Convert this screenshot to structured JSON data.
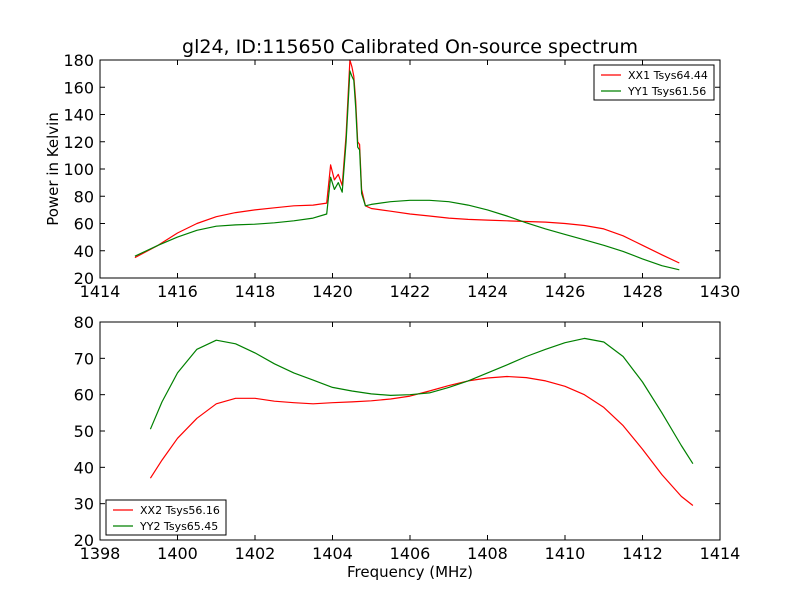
{
  "chart_data": [
    {
      "type": "line",
      "title": "gl24, ID:115650 Calibrated On-source spectrum",
      "xlabel": "",
      "ylabel": "Power in Kelvin",
      "xlim": [
        1414,
        1430
      ],
      "ylim": [
        20,
        180
      ],
      "xticks": [
        1414,
        1416,
        1418,
        1420,
        1422,
        1424,
        1426,
        1428,
        1430
      ],
      "yticks": [
        20,
        40,
        60,
        80,
        100,
        120,
        140,
        160,
        180
      ],
      "grid": false,
      "legend": "top-right",
      "series": [
        {
          "name": "XX1 Tsys64.44",
          "color": "#ff0000",
          "x": [
            1414.9,
            1415.5,
            1416.0,
            1416.5,
            1417.0,
            1417.5,
            1418.0,
            1418.5,
            1419.0,
            1419.5,
            1419.85,
            1419.95,
            1420.05,
            1420.15,
            1420.25,
            1420.35,
            1420.45,
            1420.5,
            1420.55,
            1420.6,
            1420.65,
            1420.7,
            1420.75,
            1420.85,
            1421.0,
            1421.5,
            1422.0,
            1422.5,
            1423.0,
            1423.5,
            1424.0,
            1424.5,
            1425.0,
            1425.5,
            1426.0,
            1426.5,
            1427.0,
            1427.5,
            1428.0,
            1428.5,
            1428.95
          ],
          "y": [
            35,
            44,
            53,
            60,
            65,
            68,
            70,
            71.5,
            73,
            73.5,
            75,
            103,
            92,
            96,
            88,
            125,
            180,
            175,
            168,
            150,
            120,
            118,
            85,
            73,
            71,
            69,
            67,
            65.5,
            64,
            63,
            62.5,
            62,
            61.5,
            61,
            60,
            58.5,
            56,
            51,
            44,
            37,
            31
          ]
        },
        {
          "name": "YY1 Tsys61.56",
          "color": "#008000",
          "x": [
            1414.9,
            1415.5,
            1416.0,
            1416.5,
            1417.0,
            1417.5,
            1418.0,
            1418.5,
            1419.0,
            1419.5,
            1419.85,
            1419.95,
            1420.05,
            1420.15,
            1420.25,
            1420.35,
            1420.45,
            1420.5,
            1420.55,
            1420.6,
            1420.65,
            1420.7,
            1420.75,
            1420.85,
            1421.0,
            1421.5,
            1422.0,
            1422.5,
            1423.0,
            1423.5,
            1424.0,
            1424.5,
            1425.0,
            1425.5,
            1426.0,
            1426.5,
            1427.0,
            1427.5,
            1428.0,
            1428.5,
            1428.95
          ],
          "y": [
            36,
            44,
            50,
            55,
            58,
            59,
            59.5,
            60.5,
            62,
            64,
            67,
            94,
            85,
            90,
            83,
            120,
            172,
            168,
            165,
            145,
            116,
            114,
            82,
            73,
            74,
            76,
            77,
            77,
            76,
            73.5,
            70,
            65.5,
            60.5,
            56,
            52,
            48,
            44,
            39.5,
            34,
            29,
            26
          ]
        }
      ]
    },
    {
      "type": "line",
      "title": "",
      "xlabel": "Frequency (MHz)",
      "ylabel": "",
      "xlim": [
        1398,
        1414
      ],
      "ylim": [
        20,
        80
      ],
      "xticks": [
        1398,
        1400,
        1402,
        1404,
        1406,
        1408,
        1410,
        1412,
        1414
      ],
      "yticks": [
        20,
        30,
        40,
        50,
        60,
        70,
        80
      ],
      "grid": false,
      "legend": "bottom-left",
      "series": [
        {
          "name": "XX2 Tsys56.16",
          "color": "#ff0000",
          "x": [
            1399.3,
            1399.6,
            1400.0,
            1400.5,
            1401.0,
            1401.5,
            1402.0,
            1402.5,
            1403.0,
            1403.5,
            1404.0,
            1404.5,
            1405.0,
            1405.5,
            1406.0,
            1406.5,
            1407.0,
            1407.5,
            1408.0,
            1408.5,
            1409.0,
            1409.5,
            1410.0,
            1410.5,
            1411.0,
            1411.5,
            1412.0,
            1412.5,
            1413.0,
            1413.3
          ],
          "y": [
            37,
            42,
            48,
            53.5,
            57.5,
            59,
            59,
            58.2,
            57.8,
            57.5,
            57.8,
            58,
            58.3,
            58.8,
            59.6,
            61,
            62.5,
            63.8,
            64.6,
            65,
            64.7,
            63.8,
            62.3,
            60,
            56.5,
            51.5,
            45,
            38,
            32,
            29.5
          ]
        },
        {
          "name": "YY2 Tsys65.45",
          "color": "#008000",
          "x": [
            1399.3,
            1399.6,
            1400.0,
            1400.5,
            1401.0,
            1401.5,
            1402.0,
            1402.5,
            1403.0,
            1403.5,
            1404.0,
            1404.5,
            1405.0,
            1405.5,
            1406.0,
            1406.5,
            1407.0,
            1407.5,
            1408.0,
            1408.5,
            1409.0,
            1409.5,
            1410.0,
            1410.5,
            1411.0,
            1411.5,
            1412.0,
            1412.5,
            1413.0,
            1413.3
          ],
          "y": [
            50.5,
            58,
            66,
            72.5,
            75,
            74,
            71.5,
            68.5,
            66,
            64,
            62,
            61,
            60.2,
            59.8,
            60,
            60.5,
            62,
            63.8,
            66,
            68.2,
            70.5,
            72.5,
            74.3,
            75.5,
            74.5,
            70.5,
            63.5,
            55,
            46,
            41
          ]
        }
      ]
    }
  ]
}
